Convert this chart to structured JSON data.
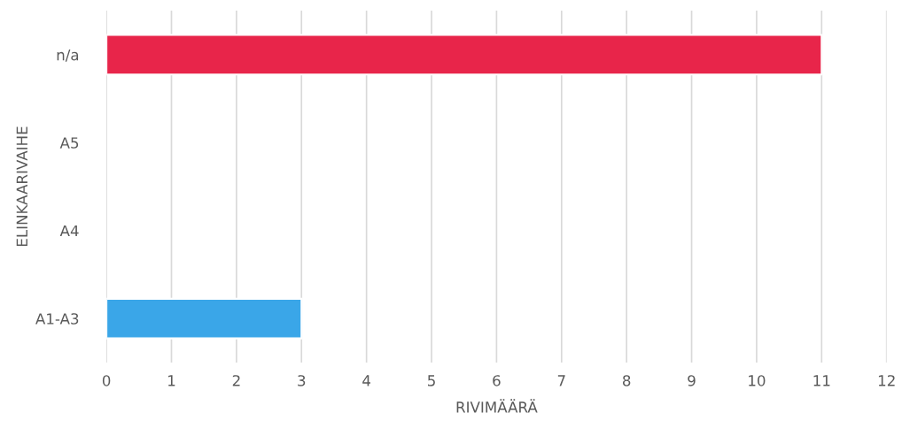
{
  "chart_data": {
    "type": "bar",
    "orientation": "horizontal",
    "categories": [
      "n/a",
      "A5",
      "A4",
      "A1-A3"
    ],
    "values": [
      11,
      null,
      null,
      3
    ],
    "colors": [
      "#e8254a",
      null,
      null,
      "#3aa6e8"
    ],
    "xlim": [
      0,
      12
    ],
    "xticks": [
      0,
      1,
      2,
      3,
      4,
      5,
      6,
      7,
      8,
      9,
      10,
      11,
      12
    ],
    "xlabel": "RIVIMÄÄRÄ",
    "ylabel": "ELINKAARIVAIHE",
    "grid": "x"
  }
}
